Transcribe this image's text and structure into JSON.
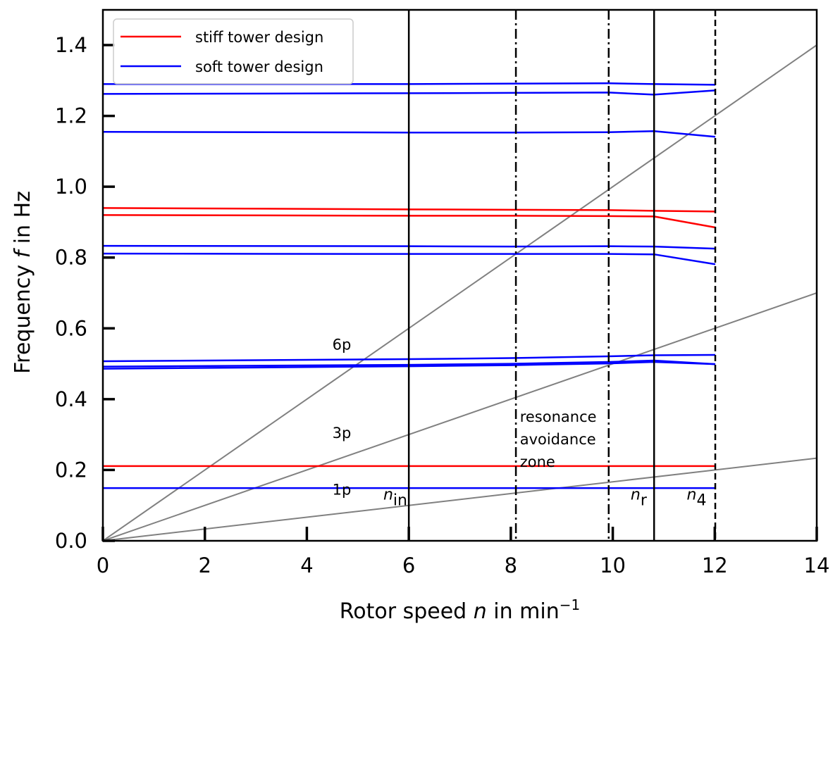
{
  "chart_data": {
    "type": "line",
    "title": "",
    "xlabel": "Rotor speed n in min^-1",
    "xlabel_parts": {
      "pre": "Rotor speed ",
      "var": "n",
      "mid": " in min",
      "sup": "−1"
    },
    "ylabel": "Frequency f in Hz",
    "ylabel_parts": {
      "pre": "Frequency ",
      "var": "f",
      "post": " in Hz"
    },
    "xlim": [
      0,
      14
    ],
    "ylim": [
      0,
      1.5
    ],
    "xticks": [
      0,
      2,
      4,
      6,
      8,
      10,
      12,
      14
    ],
    "xtick_labels": [
      "0",
      "2",
      "4",
      "6",
      "8",
      "10",
      "12",
      "14"
    ],
    "yticks": [
      0.0,
      0.2,
      0.4,
      0.6,
      0.8,
      1.0,
      1.2,
      1.4
    ],
    "ytick_labels": [
      "0.0",
      "0.2",
      "0.4",
      "0.6",
      "0.8",
      "1.0",
      "1.2",
      "1.4"
    ],
    "grid": false,
    "legend_position": "upper left",
    "legend": [
      {
        "label": "stiff tower design",
        "color": "#ff0000"
      },
      {
        "label": "soft tower design",
        "color": "#0000ff"
      }
    ],
    "excitation_lines": [
      {
        "label": "1p",
        "slope": 0.016667,
        "color": "#808080",
        "label_pos": [
          4.5,
          0.11
        ]
      },
      {
        "label": "3p",
        "slope": 0.05,
        "color": "#808080",
        "label_pos": [
          4.5,
          0.27
        ]
      },
      {
        "label": "6p",
        "slope": 0.1,
        "color": "#808080",
        "label_pos": [
          4.5,
          0.52
        ]
      }
    ],
    "vertical_lines": [
      {
        "x": 6.0,
        "style": "solid",
        "label": "n",
        "sub": "in",
        "label_pos": [
          5.5,
          0.1
        ]
      },
      {
        "x": 8.1,
        "style": "dashdot",
        "label": "",
        "sub": ""
      },
      {
        "x": 9.92,
        "style": "dashdot",
        "label": "",
        "sub": ""
      },
      {
        "x": 10.81,
        "style": "solid",
        "label": "n",
        "sub": "r",
        "label_pos": [
          10.35,
          0.1
        ]
      },
      {
        "x": 12.01,
        "style": "dashed",
        "label": "n",
        "sub": "4",
        "label_pos": [
          11.45,
          0.1
        ]
      }
    ],
    "zone_annotation": {
      "lines": [
        "resonance",
        "avoidance",
        "zone"
      ],
      "x": 8.15,
      "y": 0.36
    },
    "x": [
      0,
      6,
      8,
      9.92,
      10.81,
      12.01
    ],
    "series": [
      {
        "name": "stiff tower design",
        "color": "#ff0000",
        "values": [
          0.94,
          0.936,
          0.935,
          0.934,
          0.932,
          0.93
        ]
      },
      {
        "name": "stiff tower design",
        "color": "#ff0000",
        "values": [
          0.92,
          0.918,
          0.918,
          0.917,
          0.916,
          0.885
        ]
      },
      {
        "name": "stiff tower design",
        "color": "#ff0000",
        "values": [
          0.211,
          0.211,
          0.211,
          0.211,
          0.211,
          0.211
        ]
      },
      {
        "name": "soft tower design",
        "color": "#0000ff",
        "values": [
          1.29,
          1.29,
          1.291,
          1.292,
          1.29,
          1.288
        ]
      },
      {
        "name": "soft tower design",
        "color": "#0000ff",
        "values": [
          1.262,
          1.264,
          1.265,
          1.266,
          1.26,
          1.272
        ]
      },
      {
        "name": "soft tower design",
        "color": "#0000ff",
        "values": [
          1.155,
          1.153,
          1.153,
          1.154,
          1.157,
          1.141
        ]
      },
      {
        "name": "soft tower design",
        "color": "#0000ff",
        "values": [
          0.833,
          0.832,
          0.831,
          0.832,
          0.831,
          0.825
        ]
      },
      {
        "name": "soft tower design",
        "color": "#0000ff",
        "values": [
          0.811,
          0.81,
          0.81,
          0.81,
          0.809,
          0.781
        ]
      },
      {
        "name": "soft tower design",
        "color": "#0000ff",
        "values": [
          0.507,
          0.513,
          0.516,
          0.521,
          0.524,
          0.525
        ]
      },
      {
        "name": "soft tower design",
        "color": "#0000ff",
        "values": [
          0.492,
          0.497,
          0.5,
          0.505,
          0.509,
          0.499
        ]
      },
      {
        "name": "soft tower design",
        "color": "#0000ff",
        "values": [
          0.486,
          0.493,
          0.496,
          0.501,
          0.505,
          0.499
        ]
      },
      {
        "name": "soft tower design",
        "color": "#0000ff",
        "values": [
          0.149,
          0.149,
          0.149,
          0.149,
          0.149,
          0.149
        ]
      }
    ]
  }
}
